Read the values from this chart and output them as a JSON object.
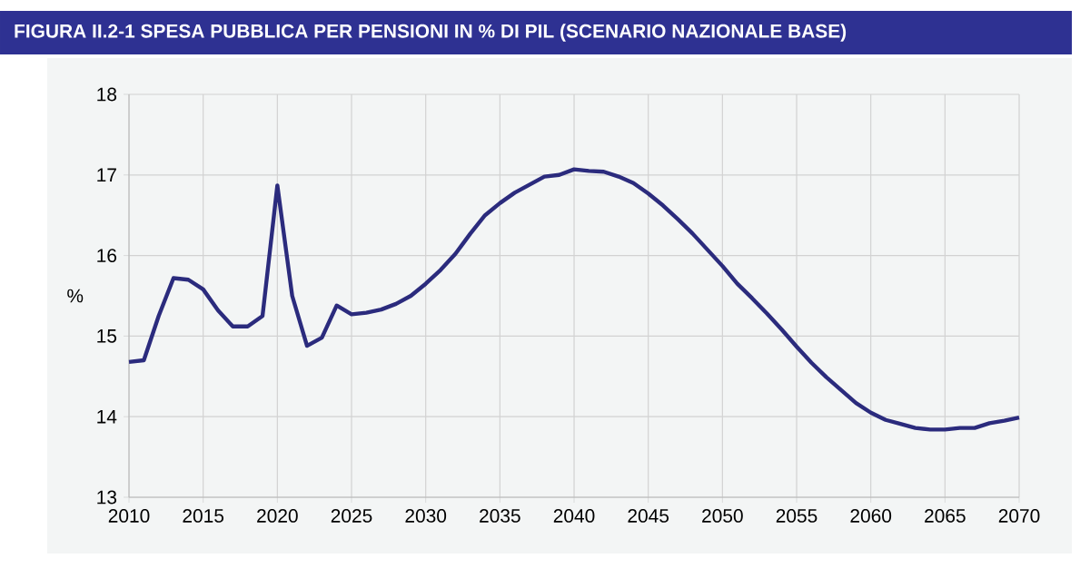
{
  "chart_data": {
    "type": "line",
    "title": "FIGURA II.2-1 SPESA PUBBLICA PER PENSIONI IN % DI PIL (SCENARIO NAZIONALE BASE)",
    "ylabel": "%",
    "x": [
      2010,
      2011,
      2012,
      2013,
      2014,
      2015,
      2016,
      2017,
      2018,
      2019,
      2020,
      2021,
      2022,
      2023,
      2024,
      2025,
      2026,
      2027,
      2028,
      2029,
      2030,
      2031,
      2032,
      2033,
      2034,
      2035,
      2036,
      2037,
      2038,
      2039,
      2040,
      2041,
      2042,
      2043,
      2044,
      2045,
      2046,
      2047,
      2048,
      2049,
      2050,
      2051,
      2052,
      2053,
      2054,
      2055,
      2056,
      2057,
      2058,
      2059,
      2060,
      2061,
      2062,
      2063,
      2064,
      2065,
      2066,
      2067,
      2068,
      2069,
      2070
    ],
    "series": [
      {
        "color": "#2b2b7d",
        "values": [
          14.68,
          14.7,
          15.25,
          15.72,
          15.7,
          15.58,
          15.32,
          15.12,
          15.12,
          15.25,
          16.87,
          15.5,
          14.88,
          14.98,
          15.38,
          15.27,
          15.29,
          15.33,
          15.4,
          15.5,
          15.65,
          15.82,
          16.02,
          16.27,
          16.5,
          16.65,
          16.78,
          16.88,
          16.98,
          17.0,
          17.07,
          17.05,
          17.04,
          16.98,
          16.9,
          16.77,
          16.62,
          16.45,
          16.27,
          16.07,
          15.87,
          15.65,
          15.47,
          15.28,
          15.08,
          14.87,
          14.67,
          14.49,
          14.33,
          14.17,
          14.05,
          13.96,
          13.91,
          13.86,
          13.84,
          13.84,
          13.86,
          13.86,
          13.92,
          13.95,
          13.99
        ]
      }
    ],
    "xlim": [
      2010,
      2070
    ],
    "ylim": [
      13,
      18
    ],
    "xticks": [
      2010,
      2015,
      2020,
      2025,
      2030,
      2035,
      2040,
      2045,
      2050,
      2055,
      2060,
      2065,
      2070
    ],
    "yticks": [
      13,
      14,
      15,
      16,
      17,
      18
    ],
    "grid": true,
    "marker": "none",
    "line_style": "solid"
  }
}
